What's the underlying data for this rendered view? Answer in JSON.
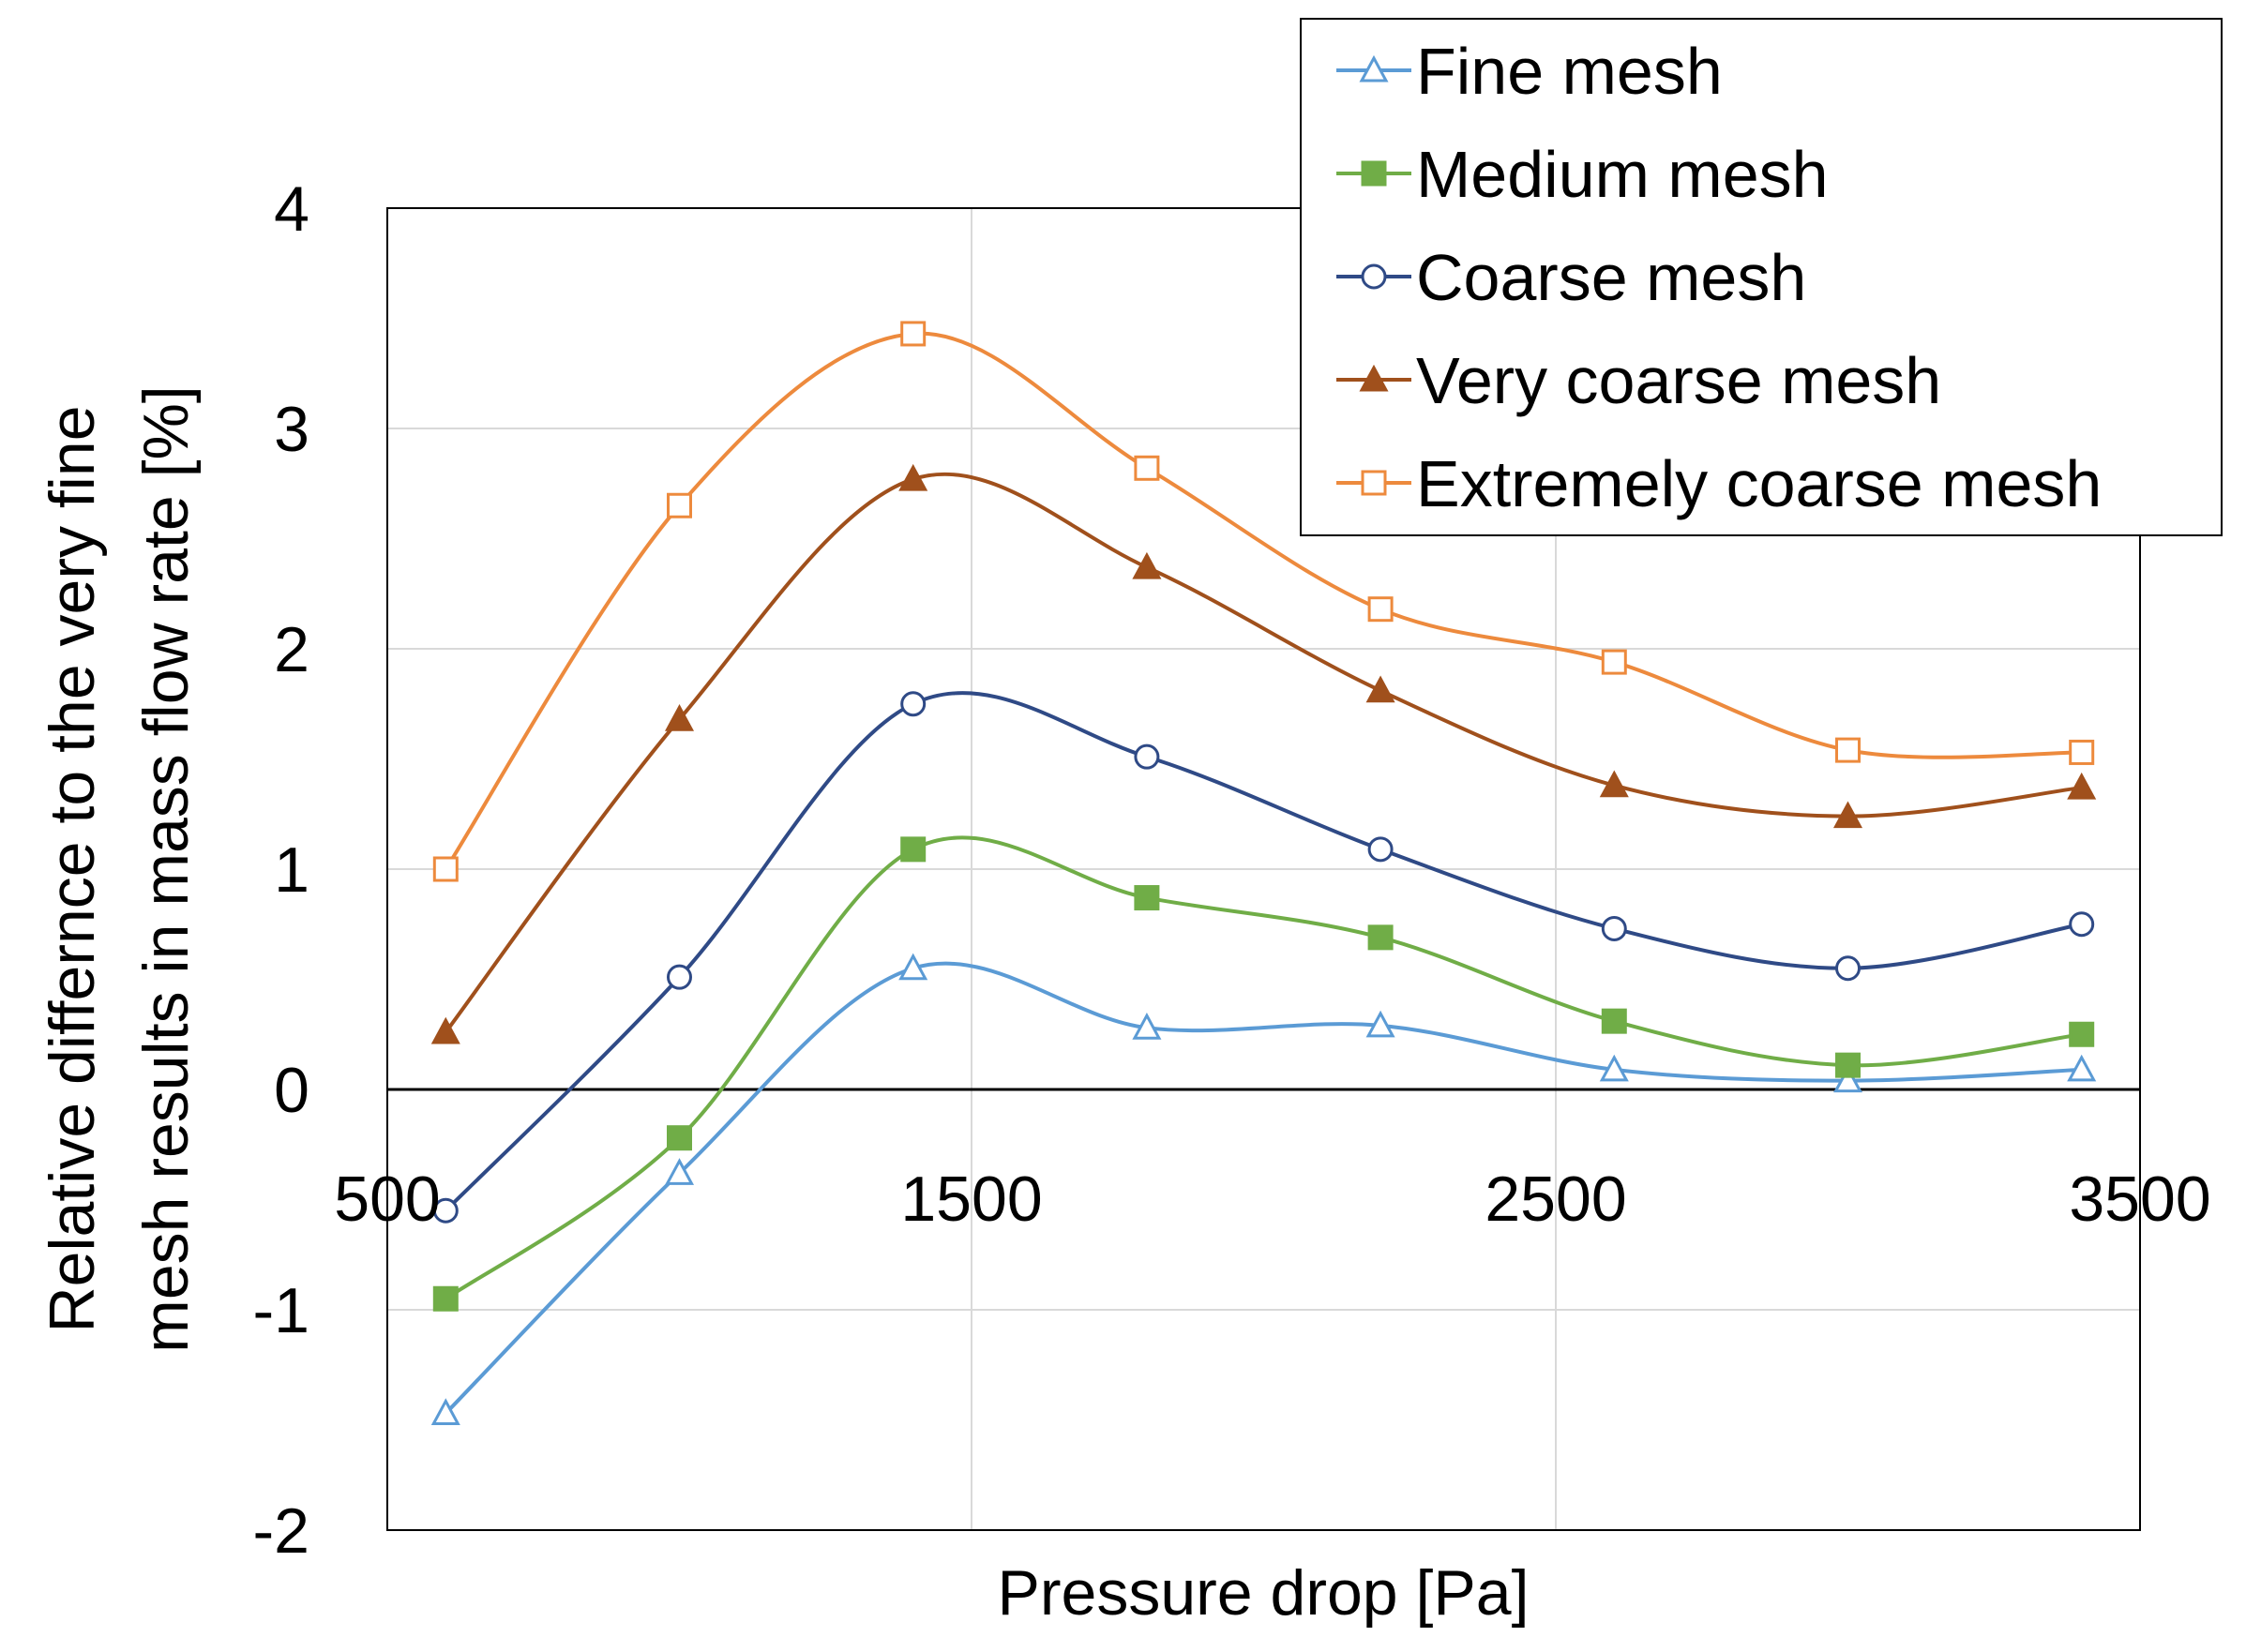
{
  "chart_data": {
    "type": "line",
    "xlabel": "Pressure drop [Pa]",
    "ylabel_lines": [
      "Relative differnce to the very fine",
      "mesh results in mass flow rate [%]"
    ],
    "xlim": [
      500,
      3500
    ],
    "ylim": [
      -2,
      4
    ],
    "x_ticks": [
      500,
      1500,
      2500,
      3500
    ],
    "y_ticks": [
      -2,
      -1,
      0,
      1,
      2,
      3,
      4
    ],
    "x_tick_labels": [
      "500",
      "1500",
      "2500",
      "3500"
    ],
    "y_tick_labels": [
      "-2",
      "-1",
      "0",
      "1",
      "2",
      "3",
      "4"
    ],
    "grid": true,
    "legend_position": "top-right",
    "x": [
      600,
      1000,
      1400,
      1800,
      2200,
      2600,
      3000,
      3400
    ],
    "series": [
      {
        "name": "Fine mesh",
        "color": "#5b9bd5",
        "marker": "triangle-open",
        "values": [
          -1.47,
          -0.38,
          0.55,
          0.28,
          0.29,
          0.09,
          0.04,
          0.09
        ]
      },
      {
        "name": "Medium mesh",
        "color": "#70ad47",
        "marker": "square-filled",
        "values": [
          -0.95,
          -0.22,
          1.09,
          0.87,
          0.69,
          0.31,
          0.11,
          0.25
        ]
      },
      {
        "name": "Coarse mesh",
        "color": "#2f4a86",
        "marker": "circle-open",
        "values": [
          -0.55,
          0.51,
          1.75,
          1.51,
          1.09,
          0.73,
          0.55,
          0.75
        ]
      },
      {
        "name": "Very coarse mesh",
        "color": "#a0501c",
        "marker": "triangle-filled",
        "values": [
          0.26,
          1.68,
          2.77,
          2.37,
          1.81,
          1.38,
          1.24,
          1.37
        ]
      },
      {
        "name": "Extremely coarse mesh",
        "color": "#ed8a3d",
        "marker": "square-open",
        "values": [
          1.0,
          2.65,
          3.43,
          2.82,
          2.18,
          1.94,
          1.54,
          1.53
        ]
      }
    ]
  }
}
